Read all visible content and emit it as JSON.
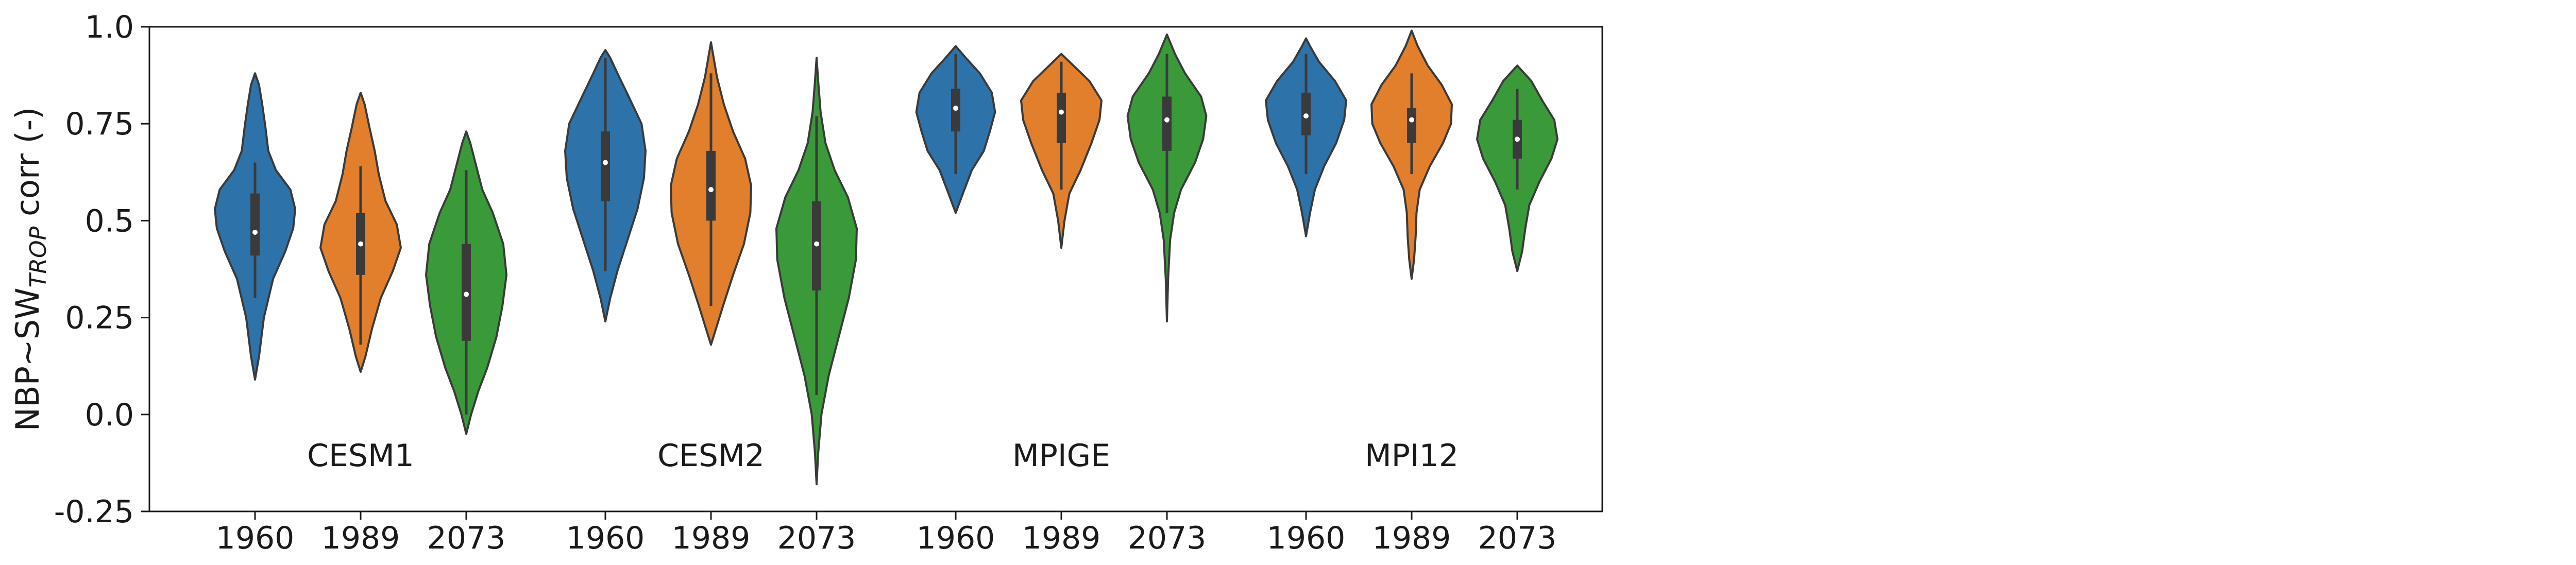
{
  "chart_data": {
    "type": "violin",
    "title": "",
    "ylabel_main": "NBP~SW",
    "ylabel_sub": "TROP",
    "ylabel_tail": " corr (-)",
    "ylim": [
      -0.25,
      1.0
    ],
    "yticks": [
      -0.25,
      0.0,
      0.25,
      0.5,
      0.75,
      1.0
    ],
    "ytick_labels": [
      "-0.25",
      "0.0",
      "0.25",
      "0.5",
      "0.75",
      "1.0"
    ],
    "grid": false,
    "legend": "none",
    "colors": {
      "1960": "#2e72aa",
      "1989": "#e17f2c",
      "2073": "#3a9a39"
    },
    "group_labels": [
      "CESM1",
      "CESM2",
      "MPIGE",
      "MPI12"
    ],
    "groups": [
      {
        "name": "CESM1",
        "violins": [
          {
            "year": "1960",
            "min": 0.09,
            "q1": 0.41,
            "median": 0.47,
            "q3": 0.57,
            "max": 0.88,
            "whisker_low": 0.3,
            "whisker_high": 0.65,
            "shape": [
              [
                0.09,
                0.0
              ],
              [
                0.15,
                0.1
              ],
              [
                0.25,
                0.22
              ],
              [
                0.35,
                0.45
              ],
              [
                0.42,
                0.75
              ],
              [
                0.48,
                0.95
              ],
              [
                0.53,
                1.0
              ],
              [
                0.58,
                0.88
              ],
              [
                0.63,
                0.52
              ],
              [
                0.68,
                0.33
              ],
              [
                0.74,
                0.26
              ],
              [
                0.8,
                0.18
              ],
              [
                0.85,
                0.1
              ],
              [
                0.88,
                0.0
              ]
            ]
          },
          {
            "year": "1989",
            "min": 0.11,
            "q1": 0.36,
            "median": 0.44,
            "q3": 0.52,
            "max": 0.83,
            "whisker_low": 0.18,
            "whisker_high": 0.64,
            "shape": [
              [
                0.11,
                0.0
              ],
              [
                0.15,
                0.12
              ],
              [
                0.22,
                0.28
              ],
              [
                0.3,
                0.5
              ],
              [
                0.37,
                0.8
              ],
              [
                0.43,
                1.0
              ],
              [
                0.49,
                0.9
              ],
              [
                0.55,
                0.62
              ],
              [
                0.62,
                0.45
              ],
              [
                0.68,
                0.35
              ],
              [
                0.74,
                0.22
              ],
              [
                0.8,
                0.1
              ],
              [
                0.83,
                0.0
              ]
            ]
          },
          {
            "year": "2073",
            "min": -0.05,
            "q1": 0.19,
            "median": 0.31,
            "q3": 0.44,
            "max": 0.73,
            "whisker_low": 0.0,
            "whisker_high": 0.63,
            "shape": [
              [
                -0.05,
                0.0
              ],
              [
                0.0,
                0.12
              ],
              [
                0.06,
                0.3
              ],
              [
                0.12,
                0.52
              ],
              [
                0.2,
                0.75
              ],
              [
                0.28,
                0.9
              ],
              [
                0.36,
                1.0
              ],
              [
                0.44,
                0.92
              ],
              [
                0.52,
                0.66
              ],
              [
                0.58,
                0.4
              ],
              [
                0.64,
                0.25
              ],
              [
                0.7,
                0.1
              ],
              [
                0.73,
                0.0
              ]
            ]
          }
        ]
      },
      {
        "name": "CESM2",
        "violins": [
          {
            "year": "1960",
            "min": 0.24,
            "q1": 0.55,
            "median": 0.65,
            "q3": 0.73,
            "max": 0.94,
            "whisker_low": 0.37,
            "whisker_high": 0.92,
            "shape": [
              [
                0.24,
                0.0
              ],
              [
                0.3,
                0.12
              ],
              [
                0.37,
                0.3
              ],
              [
                0.45,
                0.55
              ],
              [
                0.53,
                0.8
              ],
              [
                0.61,
                0.96
              ],
              [
                0.68,
                1.0
              ],
              [
                0.75,
                0.9
              ],
              [
                0.82,
                0.58
              ],
              [
                0.88,
                0.3
              ],
              [
                0.92,
                0.12
              ],
              [
                0.94,
                0.0
              ]
            ]
          },
          {
            "year": "1989",
            "min": 0.18,
            "q1": 0.5,
            "median": 0.58,
            "q3": 0.68,
            "max": 0.96,
            "whisker_low": 0.28,
            "whisker_high": 0.88,
            "shape": [
              [
                0.18,
                0.0
              ],
              [
                0.22,
                0.12
              ],
              [
                0.28,
                0.3
              ],
              [
                0.36,
                0.55
              ],
              [
                0.44,
                0.82
              ],
              [
                0.52,
                0.98
              ],
              [
                0.59,
                1.0
              ],
              [
                0.66,
                0.85
              ],
              [
                0.73,
                0.55
              ],
              [
                0.8,
                0.32
              ],
              [
                0.87,
                0.15
              ],
              [
                0.93,
                0.05
              ],
              [
                0.96,
                0.0
              ]
            ]
          },
          {
            "year": "2073",
            "min": -0.18,
            "q1": 0.32,
            "median": 0.44,
            "q3": 0.55,
            "max": 0.92,
            "whisker_low": 0.05,
            "whisker_high": 0.77,
            "shape": [
              [
                -0.18,
                0.0
              ],
              [
                -0.1,
                0.04
              ],
              [
                0.0,
                0.12
              ],
              [
                0.1,
                0.3
              ],
              [
                0.2,
                0.55
              ],
              [
                0.3,
                0.8
              ],
              [
                0.4,
                0.98
              ],
              [
                0.48,
                1.0
              ],
              [
                0.56,
                0.78
              ],
              [
                0.63,
                0.45
              ],
              [
                0.7,
                0.22
              ],
              [
                0.78,
                0.1
              ],
              [
                0.86,
                0.04
              ],
              [
                0.92,
                0.0
              ]
            ]
          }
        ]
      },
      {
        "name": "MPIGE",
        "violins": [
          {
            "year": "1960",
            "min": 0.52,
            "q1": 0.73,
            "median": 0.79,
            "q3": 0.84,
            "max": 0.95,
            "whisker_low": 0.62,
            "whisker_high": 0.93,
            "shape": [
              [
                0.52,
                0.0
              ],
              [
                0.57,
                0.18
              ],
              [
                0.63,
                0.4
              ],
              [
                0.68,
                0.7
              ],
              [
                0.73,
                0.85
              ],
              [
                0.78,
                0.98
              ],
              [
                0.83,
                0.9
              ],
              [
                0.88,
                0.6
              ],
              [
                0.92,
                0.25
              ],
              [
                0.95,
                0.0
              ]
            ]
          },
          {
            "year": "1989",
            "min": 0.43,
            "q1": 0.7,
            "median": 0.78,
            "q3": 0.83,
            "max": 0.93,
            "whisker_low": 0.58,
            "whisker_high": 0.91,
            "shape": [
              [
                0.43,
                0.0
              ],
              [
                0.5,
                0.08
              ],
              [
                0.57,
                0.2
              ],
              [
                0.63,
                0.48
              ],
              [
                0.7,
                0.75
              ],
              [
                0.76,
                0.95
              ],
              [
                0.81,
                1.0
              ],
              [
                0.86,
                0.7
              ],
              [
                0.9,
                0.3
              ],
              [
                0.93,
                0.0
              ]
            ]
          },
          {
            "year": "2073",
            "min": 0.24,
            "q1": 0.68,
            "median": 0.76,
            "q3": 0.82,
            "max": 0.98,
            "whisker_low": 0.52,
            "whisker_high": 0.93,
            "shape": [
              [
                0.24,
                0.0
              ],
              [
                0.35,
                0.03
              ],
              [
                0.45,
                0.08
              ],
              [
                0.52,
                0.18
              ],
              [
                0.58,
                0.35
              ],
              [
                0.65,
                0.7
              ],
              [
                0.71,
                0.9
              ],
              [
                0.77,
                0.98
              ],
              [
                0.82,
                0.85
              ],
              [
                0.88,
                0.45
              ],
              [
                0.93,
                0.2
              ],
              [
                0.98,
                0.0
              ]
            ]
          }
        ]
      },
      {
        "name": "MPI12",
        "violins": [
          {
            "year": "1960",
            "min": 0.46,
            "q1": 0.72,
            "median": 0.77,
            "q3": 0.83,
            "max": 0.97,
            "whisker_low": 0.62,
            "whisker_high": 0.93,
            "shape": [
              [
                0.46,
                0.0
              ],
              [
                0.52,
                0.1
              ],
              [
                0.58,
                0.22
              ],
              [
                0.64,
                0.45
              ],
              [
                0.7,
                0.75
              ],
              [
                0.76,
                0.95
              ],
              [
                0.81,
                1.0
              ],
              [
                0.86,
                0.72
              ],
              [
                0.91,
                0.32
              ],
              [
                0.95,
                0.1
              ],
              [
                0.97,
                0.0
              ]
            ]
          },
          {
            "year": "1989",
            "min": 0.35,
            "q1": 0.7,
            "median": 0.76,
            "q3": 0.79,
            "max": 0.99,
            "whisker_low": 0.62,
            "whisker_high": 0.88,
            "shape": [
              [
                0.35,
                0.0
              ],
              [
                0.4,
                0.06
              ],
              [
                0.46,
                0.1
              ],
              [
                0.52,
                0.12
              ],
              [
                0.58,
                0.2
              ],
              [
                0.64,
                0.45
              ],
              [
                0.7,
                0.78
              ],
              [
                0.75,
                0.98
              ],
              [
                0.8,
                1.0
              ],
              [
                0.85,
                0.75
              ],
              [
                0.9,
                0.4
              ],
              [
                0.95,
                0.15
              ],
              [
                0.99,
                0.0
              ]
            ]
          },
          {
            "year": "2073",
            "min": 0.37,
            "q1": 0.66,
            "median": 0.71,
            "q3": 0.76,
            "max": 0.9,
            "whisker_low": 0.58,
            "whisker_high": 0.84,
            "shape": [
              [
                0.37,
                0.0
              ],
              [
                0.42,
                0.12
              ],
              [
                0.48,
                0.2
              ],
              [
                0.54,
                0.3
              ],
              [
                0.6,
                0.55
              ],
              [
                0.66,
                0.85
              ],
              [
                0.71,
                1.0
              ],
              [
                0.76,
                0.92
              ],
              [
                0.81,
                0.62
              ],
              [
                0.86,
                0.35
              ],
              [
                0.9,
                0.0
              ]
            ]
          }
        ]
      }
    ]
  }
}
